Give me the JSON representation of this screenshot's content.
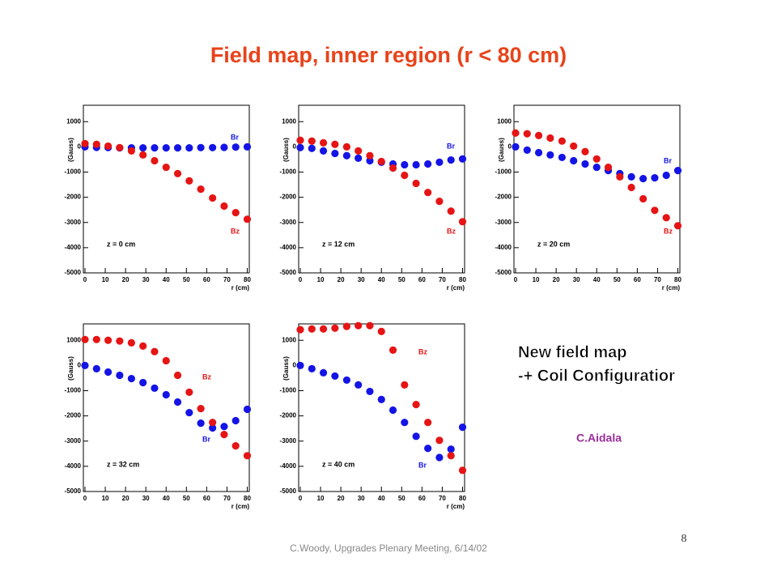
{
  "title": "Field map, inner region (r < 80 cm)",
  "note_lines": [
    "New field map",
    "-+ Coil Configuratior"
  ],
  "author": "C.Aidala",
  "footer": "C.Woody, Upgrades Plenary Meeting, 6/14/02",
  "page_number": "8",
  "chart_data": [
    {
      "type": "scatter",
      "ylabel": "(Gauss)",
      "xlabel": "r (cm)",
      "annotation": "z = 0 cm",
      "x": [
        0,
        5.7,
        11.4,
        17.1,
        22.9,
        28.6,
        34.3,
        40,
        45.7,
        51.4,
        57.1,
        62.9,
        68.6,
        74.3,
        80
      ],
      "series": [
        {
          "name": "Br",
          "color": "#1414e6",
          "values": [
            0,
            -20,
            -30,
            -40,
            -40,
            -40,
            -40,
            -40,
            -40,
            -40,
            -30,
            -30,
            -20,
            -10,
            0
          ]
        },
        {
          "name": "Bz",
          "color": "#e61414",
          "values": [
            130,
            100,
            30,
            -30,
            -160,
            -320,
            -550,
            -810,
            -1060,
            -1350,
            -1680,
            -2030,
            -2350,
            -2610,
            -2870
          ]
        }
      ],
      "xlim": [
        0,
        81
      ],
      "ylim": [
        -5000,
        1650
      ],
      "xticks": [
        0,
        10,
        20,
        30,
        40,
        50,
        60,
        70,
        80
      ],
      "yticks": [
        -5000,
        -4000,
        -3000,
        -2000,
        -1000,
        0,
        1000
      ]
    },
    {
      "type": "scatter",
      "ylabel": "(Gauss)",
      "xlabel": "r (cm)",
      "annotation": "z = 12 cm",
      "x": [
        0,
        5.7,
        11.4,
        17.1,
        22.9,
        28.6,
        34.3,
        40,
        45.7,
        51.4,
        57.1,
        62.9,
        68.6,
        74.3,
        80
      ],
      "series": [
        {
          "name": "Br",
          "color": "#1414e6",
          "values": [
            -30,
            -60,
            -160,
            -260,
            -350,
            -450,
            -550,
            -610,
            -680,
            -710,
            -710,
            -680,
            -610,
            -520,
            -480
          ]
        },
        {
          "name": "Bz",
          "color": "#e61414",
          "values": [
            260,
            230,
            160,
            100,
            0,
            -160,
            -350,
            -580,
            -840,
            -1130,
            -1450,
            -1810,
            -2160,
            -2550,
            -2970
          ]
        }
      ],
      "xlim": [
        0,
        81
      ],
      "ylim": [
        -5000,
        1650
      ],
      "xticks": [
        0,
        10,
        20,
        30,
        40,
        50,
        60,
        70,
        80
      ],
      "yticks": [
        -5000,
        -4000,
        -3000,
        -2000,
        -1000,
        0,
        1000
      ]
    },
    {
      "type": "scatter",
      "ylabel": "(Gauss)",
      "xlabel": "r (cm)",
      "annotation": "z = 20 cm",
      "x": [
        0,
        5.7,
        11.4,
        17.1,
        22.9,
        28.6,
        34.3,
        40,
        45.7,
        51.4,
        57.1,
        62.9,
        68.6,
        74.3,
        80
      ],
      "series": [
        {
          "name": "Br",
          "color": "#1414e6",
          "values": [
            0,
            -130,
            -230,
            -320,
            -420,
            -550,
            -680,
            -810,
            -940,
            -1060,
            -1190,
            -1260,
            -1230,
            -1130,
            -940
          ]
        },
        {
          "name": "Bz",
          "color": "#e61414",
          "values": [
            550,
            520,
            450,
            350,
            230,
            30,
            -190,
            -480,
            -810,
            -1190,
            -1610,
            -2060,
            -2520,
            -2810,
            -3130
          ]
        }
      ],
      "xlim": [
        0,
        81
      ],
      "ylim": [
        -5000,
        1650
      ],
      "xticks": [
        0,
        10,
        20,
        30,
        40,
        50,
        60,
        70,
        80
      ],
      "yticks": [
        -5000,
        -4000,
        -3000,
        -2000,
        -1000,
        0,
        1000
      ]
    },
    {
      "type": "scatter",
      "ylabel": "(Gauss)",
      "xlabel": "r (cm)",
      "annotation": "z = 32 cm",
      "x": [
        0,
        5.7,
        11.4,
        17.1,
        22.9,
        28.6,
        34.3,
        40,
        45.7,
        51.4,
        57.1,
        62.9,
        68.6,
        74.3,
        80
      ],
      "series": [
        {
          "name": "Br",
          "color": "#1414e6",
          "values": [
            0,
            -130,
            -260,
            -390,
            -520,
            -680,
            -900,
            -1160,
            -1450,
            -1870,
            -2290,
            -2480,
            -2420,
            -2190,
            -1740
          ]
        },
        {
          "name": "Bz",
          "color": "#e61414",
          "values": [
            1030,
            1030,
            1000,
            970,
            900,
            770,
            550,
            190,
            -390,
            -1060,
            -1710,
            -2260,
            -2740,
            -3190,
            -3580
          ]
        }
      ],
      "xlim": [
        0,
        81
      ],
      "ylim": [
        -5000,
        1650
      ],
      "xticks": [
        0,
        10,
        20,
        30,
        40,
        50,
        60,
        70,
        80
      ],
      "yticks": [
        -5000,
        -4000,
        -3000,
        -2000,
        -1000,
        0,
        1000
      ]
    },
    {
      "type": "scatter",
      "ylabel": "(Gauss)",
      "xlabel": "r (cm)",
      "annotation": "z = 40 cm",
      "x": [
        0,
        5.7,
        11.4,
        17.1,
        22.9,
        28.6,
        34.3,
        40,
        45.7,
        51.4,
        57.1,
        62.9,
        68.6,
        74.3,
        80
      ],
      "series": [
        {
          "name": "Br",
          "color": "#1414e6",
          "values": [
            0,
            -130,
            -290,
            -420,
            -580,
            -770,
            -1030,
            -1350,
            -1770,
            -2260,
            -2810,
            -3290,
            -3650,
            -3320,
            -2450
          ]
        },
        {
          "name": "Bz",
          "color": "#e61414",
          "values": [
            1420,
            1450,
            1450,
            1480,
            1550,
            1580,
            1580,
            1350,
            610,
            -770,
            -1550,
            -2260,
            -2970,
            -3580,
            -4160
          ]
        }
      ],
      "xlim": [
        0,
        81
      ],
      "ylim": [
        -5000,
        1650
      ],
      "xticks": [
        0,
        10,
        20,
        30,
        40,
        50,
        60,
        70,
        80
      ],
      "yticks": [
        -5000,
        -4000,
        -3000,
        -2000,
        -1000,
        0,
        1000
      ]
    }
  ]
}
